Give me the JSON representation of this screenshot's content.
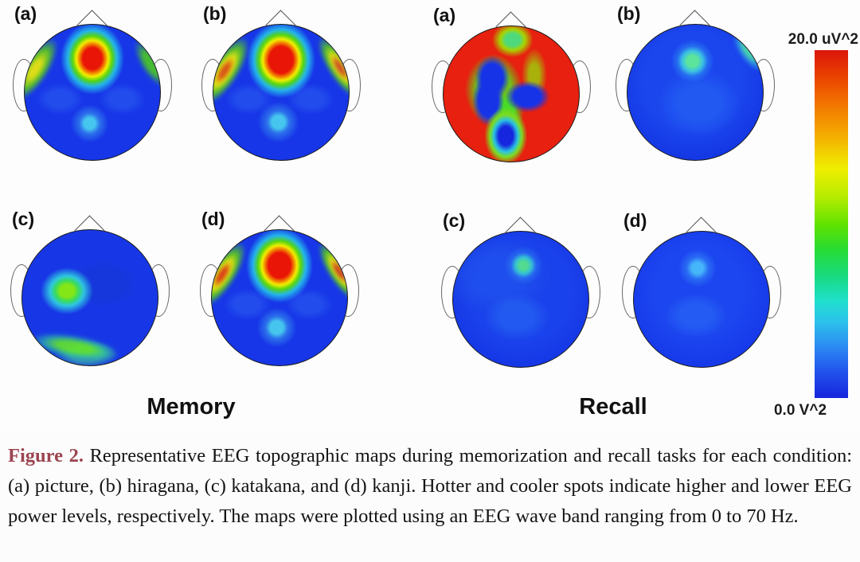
{
  "figure": {
    "groups": [
      {
        "name": "Memory",
        "panels": [
          {
            "label": "(a)",
            "style": "memory-a"
          },
          {
            "label": "(b)",
            "style": "memory-b"
          },
          {
            "label": "(c)",
            "style": "memory-c"
          },
          {
            "label": "(d)",
            "style": "memory-d"
          }
        ]
      },
      {
        "name": "Recall",
        "panels": [
          {
            "label": "(a)",
            "style": "recall-a"
          },
          {
            "label": "(b)",
            "style": "recall-b"
          },
          {
            "label": "(c)",
            "style": "recall-c"
          },
          {
            "label": "(d)",
            "style": "recall-d"
          }
        ]
      }
    ],
    "colorbar": {
      "top_label": "20.0 uV^2",
      "bottom_label": "0.0 V^2",
      "max_color": "#da150b",
      "min_color": "#1724dc"
    }
  },
  "caption": {
    "tag": "Figure 2.",
    "body": "Representative EEG topographic maps during memorization and recall tasks for each condition: (a) picture, (b) hiragana, (c) katakana, and (d) kanji. Hotter and cooler spots indicate higher and lower EEG power levels, respectively. The maps were plotted using an EEG wave band ranging from 0 to 70 Hz."
  }
}
